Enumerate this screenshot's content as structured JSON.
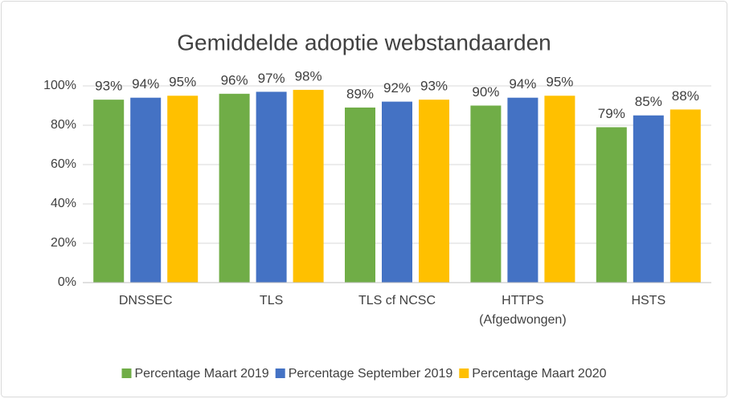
{
  "chart_data": {
    "type": "bar",
    "title": "Gemiddelde adoptie webstandaarden",
    "categories": [
      "DNSSEC",
      "TLS",
      "TLS cf NCSC",
      "HTTPS (Afgedwongen)",
      "HSTS"
    ],
    "series": [
      {
        "name": "Percentage Maart 2019",
        "color": "#70ad47",
        "values": [
          93,
          96,
          89,
          90,
          79
        ],
        "value_labels": [
          "93%",
          "96%",
          "89%",
          "90%",
          "79%"
        ]
      },
      {
        "name": "Percentage September 2019",
        "color": "#4472c4",
        "values": [
          94,
          97,
          92,
          94,
          85
        ],
        "value_labels": [
          "94%",
          "97%",
          "92%",
          "94%",
          "85%"
        ]
      },
      {
        "name": "Percentage Maart 2020",
        "color": "#ffc000",
        "values": [
          95,
          98,
          93,
          95,
          88
        ],
        "value_labels": [
          "95%",
          "98%",
          "93%",
          "95%",
          "88%"
        ]
      }
    ],
    "ylim": [
      0,
      100
    ],
    "yticks": [
      {
        "value": 0,
        "label": "0%"
      },
      {
        "value": 20,
        "label": "20%"
      },
      {
        "value": 40,
        "label": "40%"
      },
      {
        "value": 60,
        "label": "60%"
      },
      {
        "value": 80,
        "label": "80%"
      },
      {
        "value": 100,
        "label": "100%"
      }
    ],
    "grid": true,
    "legend": "bottom"
  }
}
